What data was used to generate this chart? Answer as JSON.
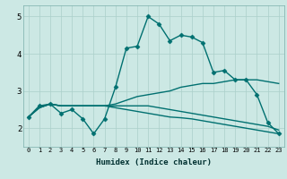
{
  "xlabel": "Humidex (Indice chaleur)",
  "xlim": [
    -0.5,
    23.5
  ],
  "ylim": [
    1.5,
    5.3
  ],
  "yticks": [
    2,
    3,
    4,
    5
  ],
  "xticks": [
    0,
    1,
    2,
    3,
    4,
    5,
    6,
    7,
    8,
    9,
    10,
    11,
    12,
    13,
    14,
    15,
    16,
    17,
    18,
    19,
    20,
    21,
    22,
    23
  ],
  "bg_color": "#cce8e4",
  "line_color": "#007070",
  "grid_color": "#aacfca",
  "series": [
    [
      2.3,
      2.6,
      2.65,
      2.4,
      2.5,
      2.25,
      1.85,
      2.25,
      3.1,
      4.15,
      4.2,
      5.0,
      4.8,
      4.35,
      4.5,
      4.45,
      4.3,
      3.5,
      3.55,
      3.3,
      3.3,
      2.9,
      2.15,
      1.85
    ],
    [
      2.3,
      2.55,
      2.65,
      2.6,
      2.6,
      2.6,
      2.6,
      2.6,
      2.65,
      2.75,
      2.85,
      2.9,
      2.95,
      3.0,
      3.1,
      3.15,
      3.2,
      3.2,
      3.25,
      3.3,
      3.3,
      3.3,
      3.25,
      3.2
    ],
    [
      2.3,
      2.55,
      2.65,
      2.6,
      2.6,
      2.6,
      2.6,
      2.6,
      2.6,
      2.6,
      2.6,
      2.6,
      2.55,
      2.5,
      2.45,
      2.4,
      2.35,
      2.3,
      2.25,
      2.2,
      2.15,
      2.1,
      2.05,
      1.95
    ],
    [
      2.3,
      2.55,
      2.65,
      2.6,
      2.6,
      2.6,
      2.6,
      2.6,
      2.55,
      2.5,
      2.45,
      2.4,
      2.35,
      2.3,
      2.28,
      2.25,
      2.2,
      2.15,
      2.1,
      2.05,
      2.0,
      1.95,
      1.9,
      1.85
    ]
  ]
}
